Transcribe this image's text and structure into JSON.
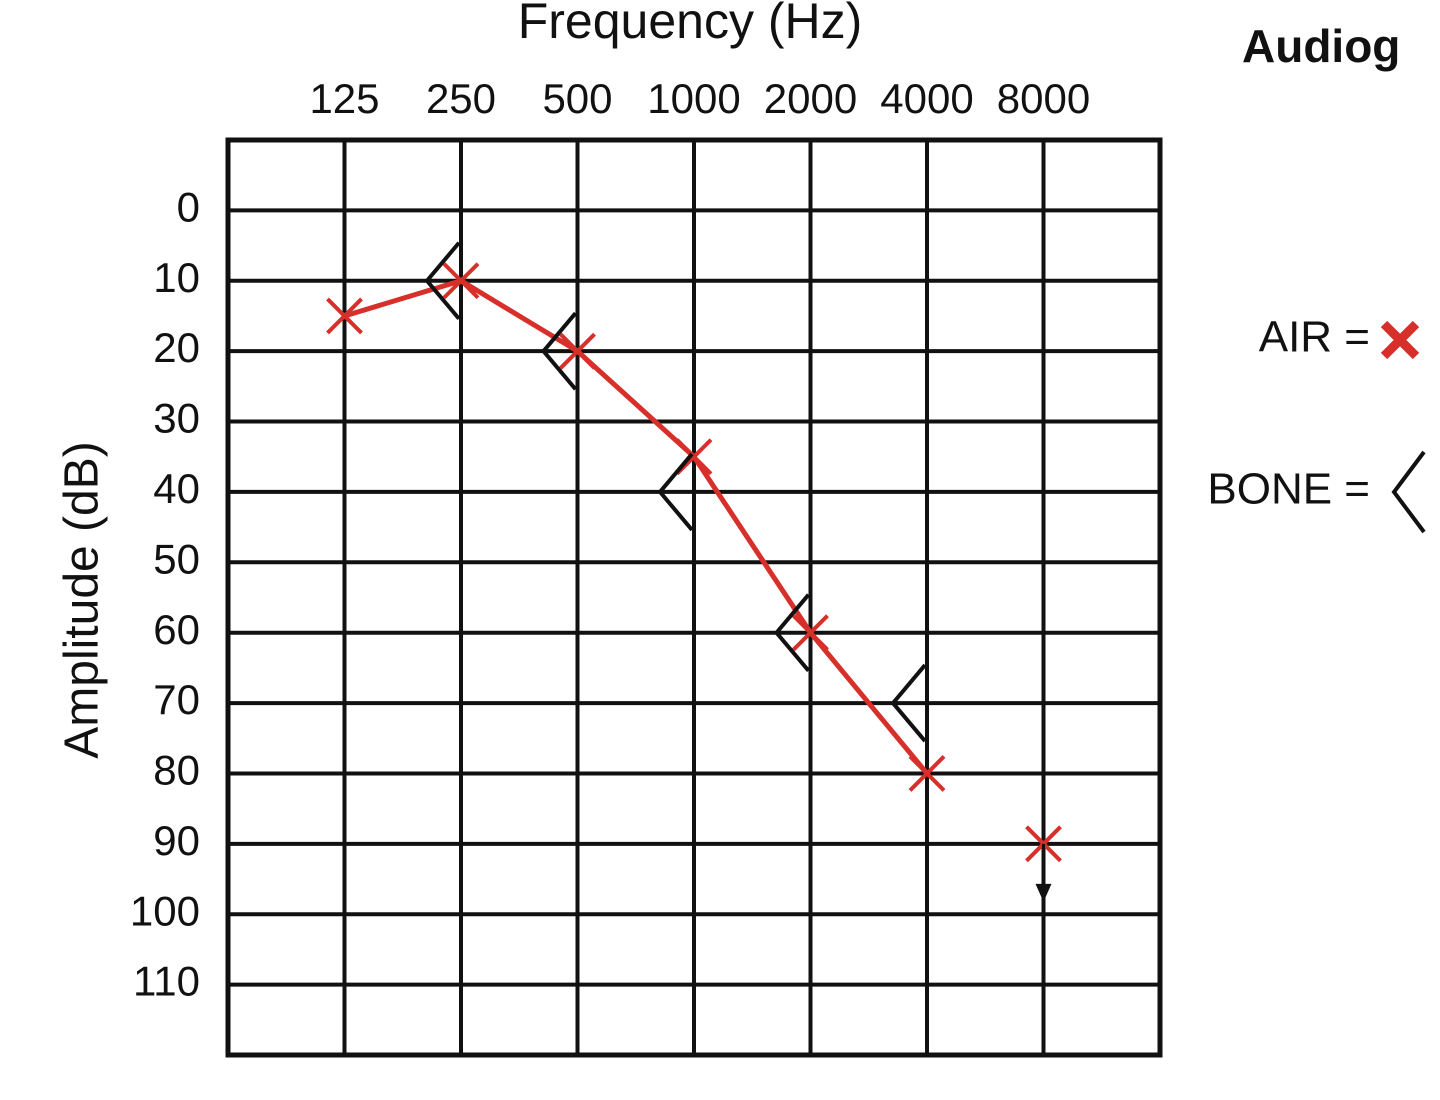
{
  "chart_data": {
    "type": "audiogram",
    "title": "Audiog",
    "x_label": "Frequency (Hz)",
    "y_label": "Amplitude (dB)",
    "xscale": "log",
    "xlim": [
      62.5,
      16000
    ],
    "xticks": [
      125,
      250,
      500,
      1000,
      2000,
      4000,
      8000
    ],
    "ylim": [
      -10,
      120
    ],
    "y_inverted": true,
    "yticks": [
      0,
      10,
      20,
      30,
      40,
      50,
      60,
      70,
      80,
      90,
      100,
      110
    ],
    "grid": true,
    "legend": "right",
    "series": [
      {
        "name": "AIR =",
        "marker": "x",
        "color": "#d7302a",
        "x": [
          125,
          250,
          500,
          1000,
          2000,
          4000,
          8000
        ],
        "values": [
          15,
          10,
          20,
          35,
          60,
          80,
          90
        ],
        "down_arrow": [
          false,
          false,
          false,
          false,
          false,
          false,
          true
        ]
      },
      {
        "name": "BONE =",
        "marker": "<",
        "color": "#111111",
        "x": [
          250,
          500,
          1000,
          2000,
          4000
        ],
        "values": [
          10,
          20,
          40,
          60,
          70
        ]
      }
    ]
  }
}
